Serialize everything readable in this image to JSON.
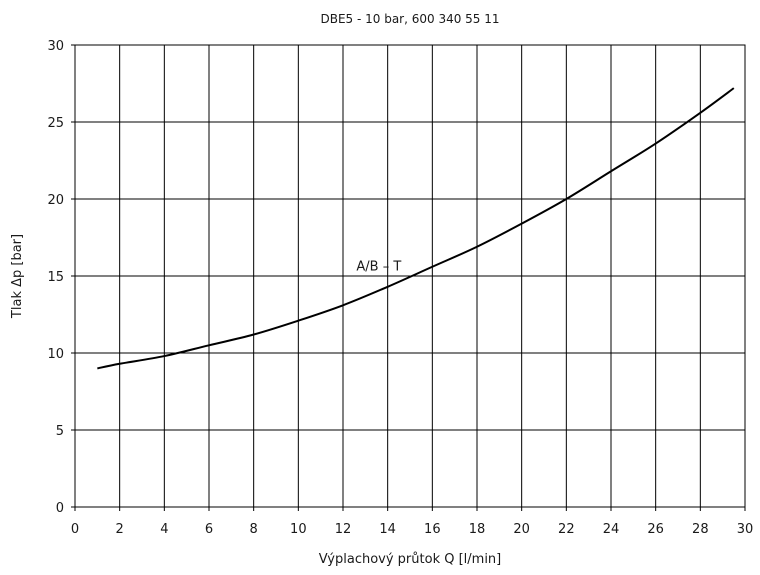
{
  "chart_data": {
    "type": "line",
    "title": "DBE5 - 10 bar, 600 340 55 11",
    "xlabel": "Výplachový průtok Q [l/min]",
    "ylabel": "Tlak Δp [bar]",
    "xlim": [
      0,
      30
    ],
    "ylim": [
      0,
      30
    ],
    "xticks": [
      0,
      2,
      4,
      6,
      8,
      10,
      12,
      14,
      16,
      18,
      20,
      22,
      24,
      26,
      28,
      30
    ],
    "yticks": [
      0,
      5,
      10,
      15,
      20,
      25,
      30
    ],
    "grid": true,
    "series": [
      {
        "name": "A/B – T",
        "x": [
          1,
          2,
          4,
          6,
          8,
          10,
          12,
          14,
          16,
          18,
          20,
          22,
          24,
          26,
          28,
          29.5
        ],
        "y": [
          9.0,
          9.3,
          9.8,
          10.5,
          11.2,
          12.1,
          13.1,
          14.3,
          15.6,
          16.9,
          18.4,
          20.0,
          21.8,
          23.6,
          25.6,
          27.2
        ]
      }
    ],
    "annotations": [
      {
        "text": "A/B – T",
        "x": 12.6,
        "y": 15.35
      }
    ]
  }
}
